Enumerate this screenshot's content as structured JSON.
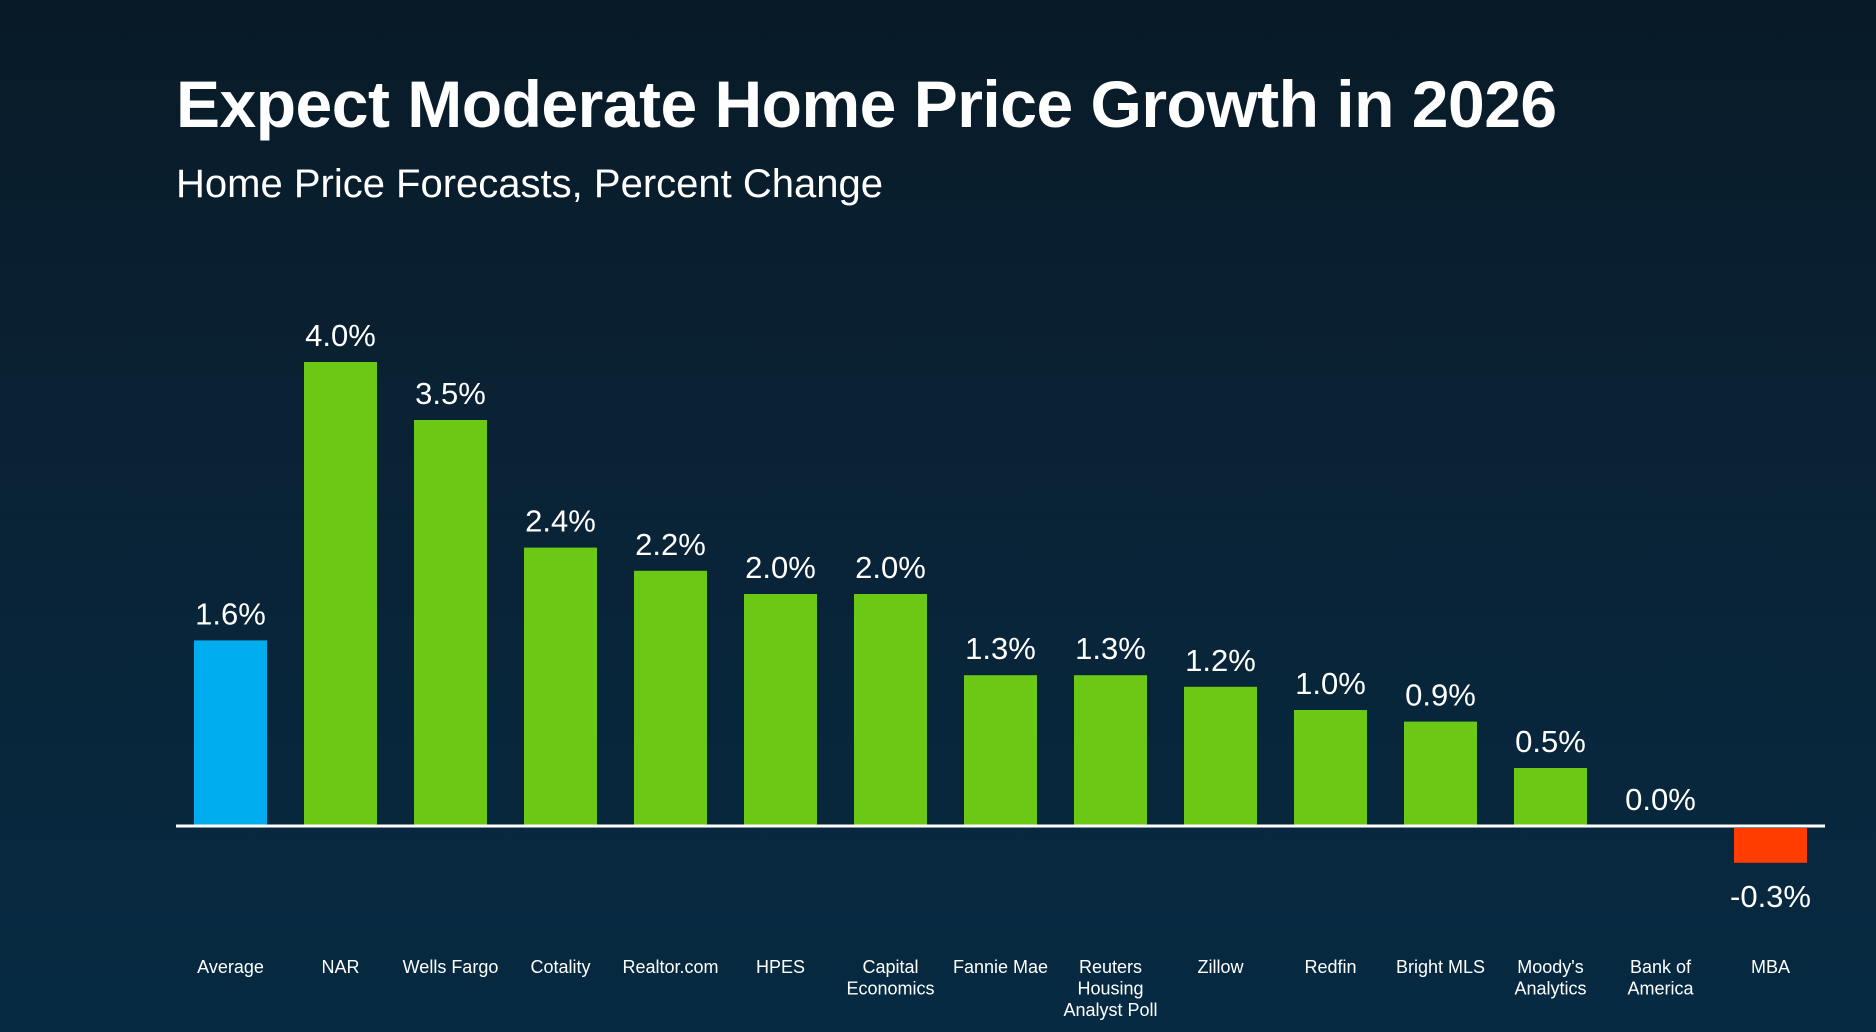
{
  "header": {
    "title": "Expect Moderate Home Price Growth in 2026",
    "subtitle": "Home Price Forecasts, Percent Change"
  },
  "colors": {
    "average": "#00AEEF",
    "positive": "#6BC814",
    "negative": "#FF3D00",
    "axis": "#FFFFFF",
    "text": "#FFFFFF"
  },
  "chart_data": {
    "type": "bar",
    "title": "Expect Moderate Home Price Growth in 2026",
    "subtitle": "Home Price Forecasts, Percent Change",
    "xlabel": "",
    "ylabel": "",
    "unit": "%",
    "ylim": [
      -0.3,
      4.0
    ],
    "grid": false,
    "legend": "none",
    "categories": [
      [
        "Average"
      ],
      [
        "NAR"
      ],
      [
        "Wells Fargo"
      ],
      [
        "Cotality"
      ],
      [
        "Realtor.com"
      ],
      [
        "HPES"
      ],
      [
        "Capital",
        "Economics"
      ],
      [
        "Fannie Mae"
      ],
      [
        "Reuters",
        "Housing",
        "Analyst Poll"
      ],
      [
        "Zillow"
      ],
      [
        "Redfin"
      ],
      [
        "Bright MLS"
      ],
      [
        "Moody's",
        "Analytics"
      ],
      [
        "Bank of",
        "America"
      ],
      [
        "MBA"
      ]
    ],
    "values": [
      1.6,
      4.0,
      3.5,
      2.4,
      2.2,
      2.0,
      2.0,
      1.3,
      1.3,
      1.2,
      1.0,
      0.9,
      0.5,
      0.0,
      -0.3
    ],
    "data_labels": [
      "1.6%",
      "4.0%",
      "3.5%",
      "2.4%",
      "2.2%",
      "2.0%",
      "2.0%",
      "1.3%",
      "1.3%",
      "1.2%",
      "1.0%",
      "0.9%",
      "0.5%",
      "0.0%",
      "-0.3%"
    ],
    "highlight": [
      true,
      false,
      false,
      false,
      false,
      false,
      false,
      false,
      false,
      false,
      false,
      false,
      false,
      false,
      false
    ]
  }
}
